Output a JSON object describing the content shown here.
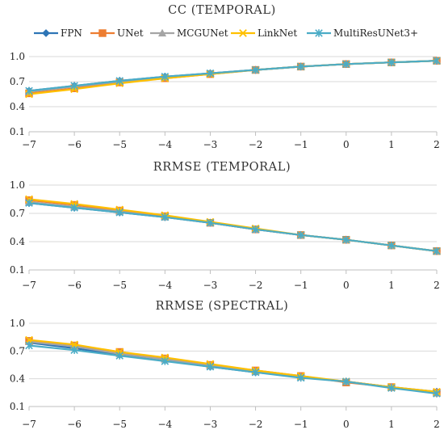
{
  "legend": [
    "FPN",
    "UNet",
    "MCGUNet",
    "LinkNet",
    "MultiResUNet3+"
  ],
  "colors": {
    "FPN": "#2e75b6",
    "UNet": "#ed7d31",
    "MCGUNet": "#a5a5a5",
    "LinkNet": "#ffc000",
    "MultiResUNet3+": "#4bacc6"
  },
  "chart_data": [
    {
      "type": "line",
      "title": "CC (TEMPORAL)",
      "x": [
        -7,
        -6,
        -5,
        -4,
        -3,
        -2,
        -1,
        0,
        1,
        2
      ],
      "ylim": [
        0.1,
        1.0
      ],
      "yticks": [
        "1.0",
        "0.7",
        "0.4",
        "0.1"
      ],
      "series": [
        {
          "name": "FPN",
          "values": [
            0.59,
            0.65,
            0.71,
            0.76,
            0.8,
            0.84,
            0.88,
            0.91,
            0.93,
            0.95
          ]
        },
        {
          "name": "UNet",
          "values": [
            0.56,
            0.62,
            0.69,
            0.74,
            0.79,
            0.84,
            0.88,
            0.91,
            0.93,
            0.95
          ]
        },
        {
          "name": "MCGUNet",
          "values": [
            0.58,
            0.64,
            0.7,
            0.75,
            0.8,
            0.84,
            0.88,
            0.91,
            0.93,
            0.95
          ]
        },
        {
          "name": "LinkNet",
          "values": [
            0.55,
            0.61,
            0.68,
            0.74,
            0.79,
            0.84,
            0.88,
            0.91,
            0.93,
            0.95
          ]
        },
        {
          "name": "MultiResUNet3+",
          "values": [
            0.59,
            0.65,
            0.71,
            0.76,
            0.8,
            0.84,
            0.88,
            0.91,
            0.93,
            0.95
          ]
        }
      ]
    },
    {
      "type": "line",
      "title": "RRMSE (TEMPORAL)",
      "x": [
        -7,
        -6,
        -5,
        -4,
        -3,
        -2,
        -1,
        0,
        1,
        2
      ],
      "ylim": [
        0.1,
        1.0
      ],
      "yticks": [
        "1.0",
        "0.7",
        "0.4",
        "0.1"
      ],
      "series": [
        {
          "name": "FPN",
          "values": [
            0.81,
            0.76,
            0.71,
            0.66,
            0.6,
            0.53,
            0.47,
            0.42,
            0.36,
            0.3
          ]
        },
        {
          "name": "UNet",
          "values": [
            0.84,
            0.79,
            0.73,
            0.67,
            0.6,
            0.53,
            0.47,
            0.42,
            0.36,
            0.3
          ]
        },
        {
          "name": "MCGUNet",
          "values": [
            0.82,
            0.77,
            0.72,
            0.66,
            0.6,
            0.53,
            0.47,
            0.42,
            0.36,
            0.3
          ]
        },
        {
          "name": "LinkNet",
          "values": [
            0.85,
            0.8,
            0.74,
            0.68,
            0.61,
            0.54,
            0.47,
            0.42,
            0.36,
            0.3
          ]
        },
        {
          "name": "MultiResUNet3+",
          "values": [
            0.81,
            0.76,
            0.71,
            0.66,
            0.6,
            0.53,
            0.47,
            0.42,
            0.36,
            0.3
          ]
        }
      ]
    },
    {
      "type": "line",
      "title": "RRMSE (SPECTRAL)",
      "x": [
        -7,
        -6,
        -5,
        -4,
        -3,
        -2,
        -1,
        0,
        1,
        2
      ],
      "ylim": [
        0.1,
        1.0
      ],
      "yticks": [
        "1.0",
        "0.7",
        "0.4",
        "0.1"
      ],
      "series": [
        {
          "name": "FPN",
          "values": [
            0.79,
            0.73,
            0.66,
            0.6,
            0.53,
            0.47,
            0.42,
            0.37,
            0.31,
            0.26
          ]
        },
        {
          "name": "UNet",
          "values": [
            0.81,
            0.76,
            0.69,
            0.62,
            0.55,
            0.49,
            0.43,
            0.36,
            0.31,
            0.25
          ]
        },
        {
          "name": "MCGUNet",
          "values": [
            0.8,
            0.75,
            0.67,
            0.61,
            0.54,
            0.48,
            0.42,
            0.37,
            0.31,
            0.25
          ]
        },
        {
          "name": "LinkNet",
          "values": [
            0.82,
            0.77,
            0.69,
            0.63,
            0.56,
            0.49,
            0.43,
            0.37,
            0.31,
            0.26
          ]
        },
        {
          "name": "MultiResUNet3+",
          "values": [
            0.76,
            0.71,
            0.65,
            0.59,
            0.53,
            0.47,
            0.41,
            0.37,
            0.3,
            0.24
          ]
        }
      ]
    }
  ]
}
